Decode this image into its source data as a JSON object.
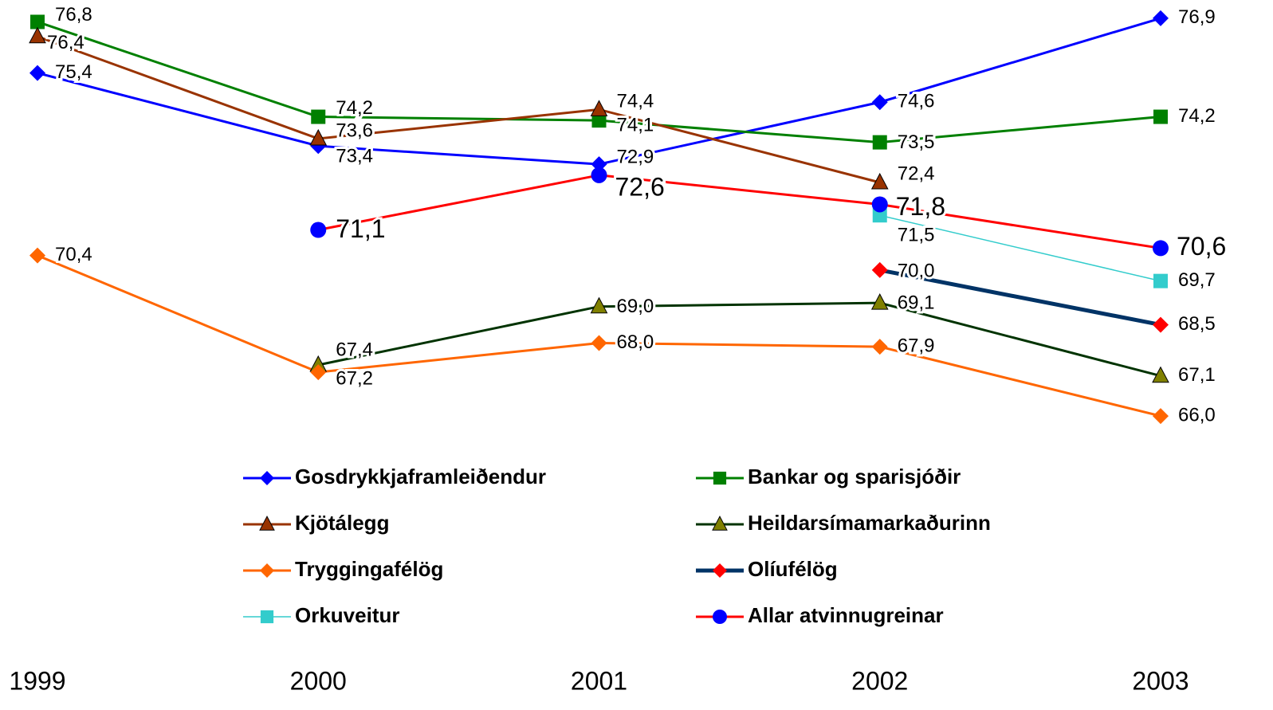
{
  "chart_data": {
    "type": "line",
    "categories": [
      "1999",
      "2000",
      "2001",
      "2002",
      "2003"
    ],
    "ylim": [
      65.5,
      77.4
    ],
    "series": [
      {
        "name": "Gosdrykkjaframleiðendur",
        "color": "#0000ff",
        "marker": "diamond",
        "marker_color": "#0000ff",
        "values": [
          75.4,
          73.4,
          72.9,
          74.6,
          76.9
        ],
        "value_labels": [
          "75,4",
          "73,4",
          "72,9",
          "74,6",
          "76,9"
        ]
      },
      {
        "name": "Bankar og sparisjóðir",
        "color": "#008000",
        "marker": "square",
        "marker_color": "#008000",
        "values": [
          76.8,
          74.2,
          74.1,
          73.5,
          74.2
        ],
        "value_labels": [
          "76,8",
          "74,2",
          "74,1",
          "73,5",
          "74,2"
        ]
      },
      {
        "name": "Kjötálegg",
        "color": "#993300",
        "marker": "triangle",
        "marker_color": "#993300",
        "values": [
          76.4,
          73.6,
          74.4,
          72.4,
          null
        ],
        "value_labels": [
          "76,4",
          "73,6",
          "74,4",
          "72,4",
          null
        ]
      },
      {
        "name": "Heildarsímamarkaðurinn",
        "color": "#003300",
        "marker": "triangle",
        "marker_color": "#808000",
        "values": [
          null,
          67.4,
          69.0,
          69.1,
          67.1
        ],
        "value_labels": [
          null,
          "67,4",
          "69,0",
          "69,1",
          "67,1"
        ]
      },
      {
        "name": "Tryggingafélög",
        "color": "#ff6600",
        "marker": "diamond",
        "marker_color": "#ff6600",
        "values": [
          70.4,
          67.2,
          68.0,
          67.9,
          66.0
        ],
        "value_labels": [
          "70,4",
          "67,2",
          "68,0",
          "67,9",
          "66,0"
        ]
      },
      {
        "name": "Olíufélög",
        "color": "#003366",
        "marker": "diamond",
        "marker_color": "#ff0000",
        "values": [
          null,
          null,
          null,
          70.0,
          68.5
        ],
        "value_labels": [
          null,
          null,
          null,
          "70,0",
          "68,5"
        ]
      },
      {
        "name": "Orkuveitur",
        "color": "#33cccc",
        "marker": "square",
        "marker_color": "#33cccc",
        "values": [
          null,
          null,
          null,
          71.5,
          69.7
        ],
        "value_labels": [
          null,
          null,
          null,
          "71,5",
          "69,7"
        ]
      },
      {
        "name": "Allar atvinnugreinar",
        "color": "#ff0000",
        "marker": "circle",
        "marker_color": "#0000ff",
        "values": [
          null,
          71.1,
          72.6,
          71.8,
          70.6
        ],
        "value_labels": [
          null,
          "71,1",
          "72,6",
          "71,8",
          "70,6"
        ]
      }
    ]
  }
}
